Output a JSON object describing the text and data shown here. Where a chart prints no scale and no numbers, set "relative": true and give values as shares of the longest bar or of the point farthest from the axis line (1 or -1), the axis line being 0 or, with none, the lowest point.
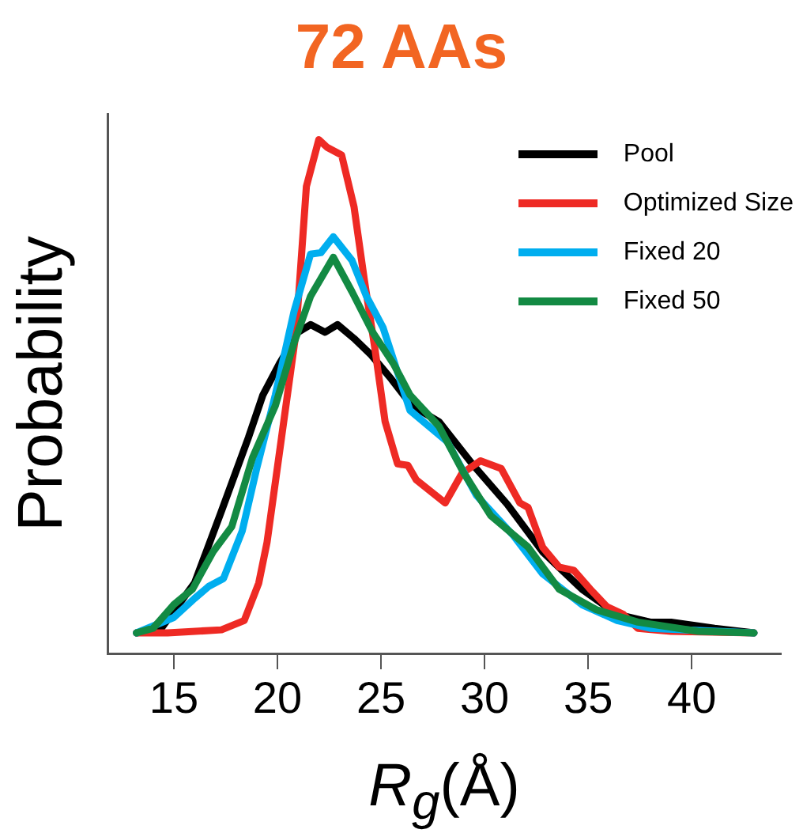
{
  "chart_data": {
    "type": "line",
    "title": "72 AAs",
    "xlabel": "R$_{g}$(Å)",
    "ylabel": "Probability",
    "relative": true,
    "xlim": [
      11.8,
      44.3
    ],
    "xticks": [
      15,
      20,
      25,
      30,
      35,
      40
    ],
    "grid": false,
    "legend": "top right",
    "marker": "none",
    "line_style": "solid",
    "series": [
      {
        "name": "Pool",
        "color": "#000000",
        "x": [
          13.2,
          14.4,
          16.0,
          17.3,
          18.6,
          19.3,
          20.1,
          21.0,
          21.6,
          22.3,
          22.9,
          23.7,
          24.5,
          25.5,
          26.5,
          27.8,
          29.4,
          31.1,
          32.8,
          34.7,
          36.4,
          38.0,
          39.0,
          41.1,
          43.0
        ],
        "values": [
          0.04,
          0.049,
          0.137,
          0.277,
          0.42,
          0.503,
          0.564,
          0.625,
          0.64,
          0.625,
          0.64,
          0.613,
          0.582,
          0.534,
          0.482,
          0.451,
          0.369,
          0.29,
          0.198,
          0.125,
          0.076,
          0.061,
          0.061,
          0.049,
          0.04
        ]
      },
      {
        "name": "Optimized Size",
        "color": "#ee2a24",
        "x": [
          13.2,
          14.7,
          17.3,
          18.4,
          19.1,
          19.5,
          20.2,
          20.9,
          21.4,
          22.0,
          22.4,
          23.1,
          23.7,
          24.2,
          24.7,
          25.2,
          25.8,
          26.3,
          26.7,
          28.1,
          28.9,
          29.8,
          30.8,
          31.7,
          32.1,
          32.8,
          33.6,
          34.3,
          35.1,
          35.9,
          36.7,
          37.4,
          39.0,
          43.0
        ],
        "values": [
          0.04,
          0.04,
          0.046,
          0.064,
          0.137,
          0.216,
          0.42,
          0.625,
          0.909,
          1,
          0.985,
          0.97,
          0.869,
          0.726,
          0.595,
          0.451,
          0.369,
          0.366,
          0.338,
          0.293,
          0.35,
          0.375,
          0.36,
          0.293,
          0.284,
          0.207,
          0.168,
          0.162,
          0.125,
          0.091,
          0.076,
          0.049,
          0.043,
          0.04
        ]
      },
      {
        "name": "Fixed 20",
        "color": "#00aeef",
        "x": [
          13.2,
          15.0,
          16.0,
          16.7,
          17.4,
          18.3,
          19.0,
          19.9,
          20.8,
          21.6,
          22.1,
          22.7,
          23.6,
          24.3,
          25.1,
          26.4,
          28.2,
          29.6,
          31.4,
          32.8,
          34.7,
          36.4,
          38.0,
          43.0
        ],
        "values": [
          0.04,
          0.07,
          0.107,
          0.131,
          0.146,
          0.238,
          0.36,
          0.503,
          0.665,
          0.777,
          0.78,
          0.811,
          0.765,
          0.695,
          0.634,
          0.473,
          0.412,
          0.308,
          0.229,
          0.155,
          0.095,
          0.064,
          0.049,
          0.04
        ]
      },
      {
        "name": "Fixed 50",
        "color": "#138a43",
        "x": [
          13.2,
          14.0,
          15.0,
          15.9,
          16.9,
          17.8,
          18.8,
          19.9,
          20.8,
          21.6,
          22.7,
          23.6,
          24.6,
          25.6,
          26.4,
          27.8,
          29.0,
          30.3,
          32.1,
          33.6,
          35.4,
          37.4,
          40.3,
          43.0
        ],
        "values": [
          0.04,
          0.049,
          0.095,
          0.125,
          0.198,
          0.247,
          0.381,
          0.482,
          0.604,
          0.695,
          0.771,
          0.704,
          0.625,
          0.564,
          0.503,
          0.442,
          0.351,
          0.268,
          0.207,
          0.125,
          0.085,
          0.061,
          0.043,
          0.04
        ]
      }
    ]
  }
}
